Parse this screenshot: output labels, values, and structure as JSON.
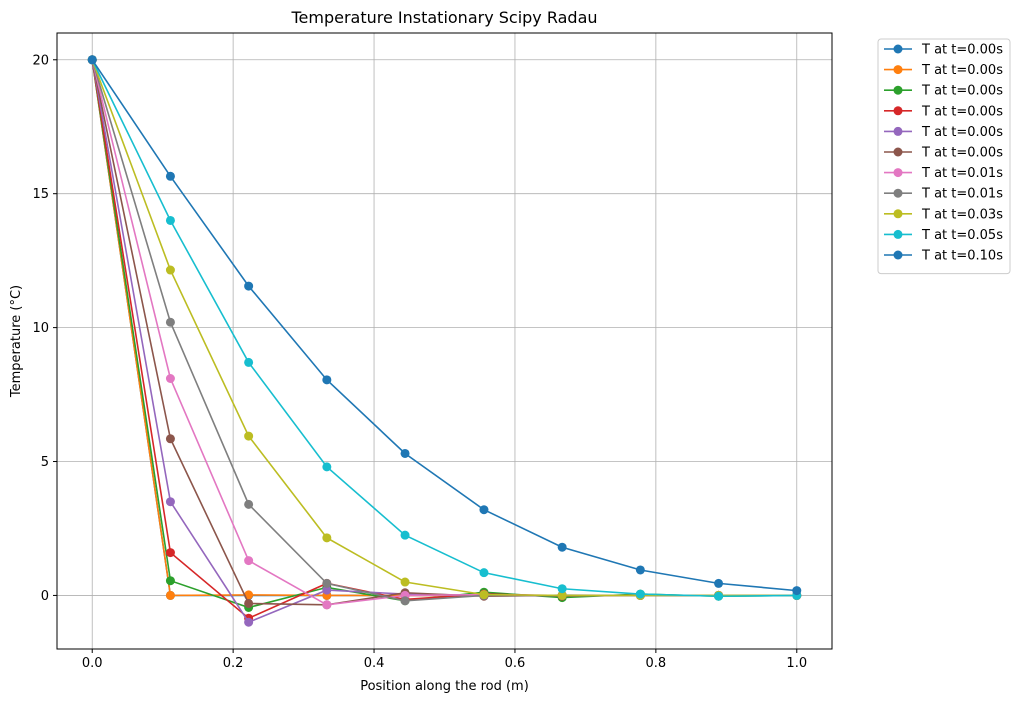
{
  "chart_data": {
    "type": "line",
    "title": "Temperature Instationary Scipy Radau",
    "xlabel": "Position along the rod (m)",
    "ylabel": "Temperature (°C)",
    "xlim": [
      -0.05,
      1.05
    ],
    "ylim": [
      -2,
      21
    ],
    "xticks": [
      0.0,
      0.2,
      0.4,
      0.6,
      0.8,
      1.0
    ],
    "xtick_labels": [
      "0.0",
      "0.2",
      "0.4",
      "0.6",
      "0.8",
      "1.0"
    ],
    "yticks": [
      0,
      5,
      10,
      15,
      20
    ],
    "ytick_labels": [
      "0",
      "5",
      "10",
      "15",
      "20"
    ],
    "grid": true,
    "legend_position": "outside-top-right",
    "x": [
      0.0,
      0.111,
      0.222,
      0.333,
      0.444,
      0.556,
      0.667,
      0.778,
      0.889,
      1.0
    ],
    "series": [
      {
        "name": "T at t=0.00s",
        "color": "#1f77b4",
        "values": [
          20,
          0,
          0,
          0,
          0,
          0,
          0,
          0,
          0,
          0
        ]
      },
      {
        "name": "T at t=0.00s",
        "color": "#ff7f0e",
        "values": [
          20,
          0,
          0.02,
          0,
          0,
          0,
          0,
          0,
          0,
          0
        ]
      },
      {
        "name": "T at t=0.00s",
        "color": "#2ca02c",
        "values": [
          20,
          0.55,
          -0.45,
          0.3,
          -0.2,
          0.12,
          -0.08,
          0.05,
          -0.03,
          0
        ]
      },
      {
        "name": "T at t=0.00s",
        "color": "#d62728",
        "values": [
          20,
          1.6,
          -0.85,
          0.45,
          -0.15,
          0.05,
          -0.02,
          0.01,
          0,
          0
        ]
      },
      {
        "name": "T at t=0.00s",
        "color": "#9467bd",
        "values": [
          20,
          3.5,
          -1.0,
          0.2,
          0.05,
          0,
          0,
          0,
          0,
          0
        ]
      },
      {
        "name": "T at t=0.00s",
        "color": "#8c564b",
        "values": [
          20,
          5.85,
          -0.3,
          -0.35,
          0.1,
          -0.03,
          0.01,
          0,
          0,
          0
        ]
      },
      {
        "name": "T at t=0.01s",
        "color": "#e377c2",
        "values": [
          20,
          8.1,
          1.3,
          -0.35,
          0.0,
          0.03,
          0.0,
          0.0,
          0,
          0
        ]
      },
      {
        "name": "T at t=0.01s",
        "color": "#7f7f7f",
        "values": [
          20,
          10.2,
          3.4,
          0.45,
          -0.2,
          0.0,
          0.0,
          0.0,
          0,
          0
        ]
      },
      {
        "name": "T at t=0.03s",
        "color": "#bcbd22",
        "values": [
          20,
          12.15,
          5.95,
          2.15,
          0.5,
          0.03,
          0.0,
          0.0,
          0,
          0
        ]
      },
      {
        "name": "T at t=0.05s",
        "color": "#17becf",
        "values": [
          20,
          14.0,
          8.7,
          4.8,
          2.25,
          0.85,
          0.25,
          0.05,
          -0.03,
          0
        ]
      },
      {
        "name": "T at t=0.10s",
        "color": "#1f77b4",
        "values": [
          20,
          15.65,
          11.55,
          8.05,
          5.3,
          3.2,
          1.8,
          0.95,
          0.45,
          0.18
        ]
      }
    ]
  }
}
